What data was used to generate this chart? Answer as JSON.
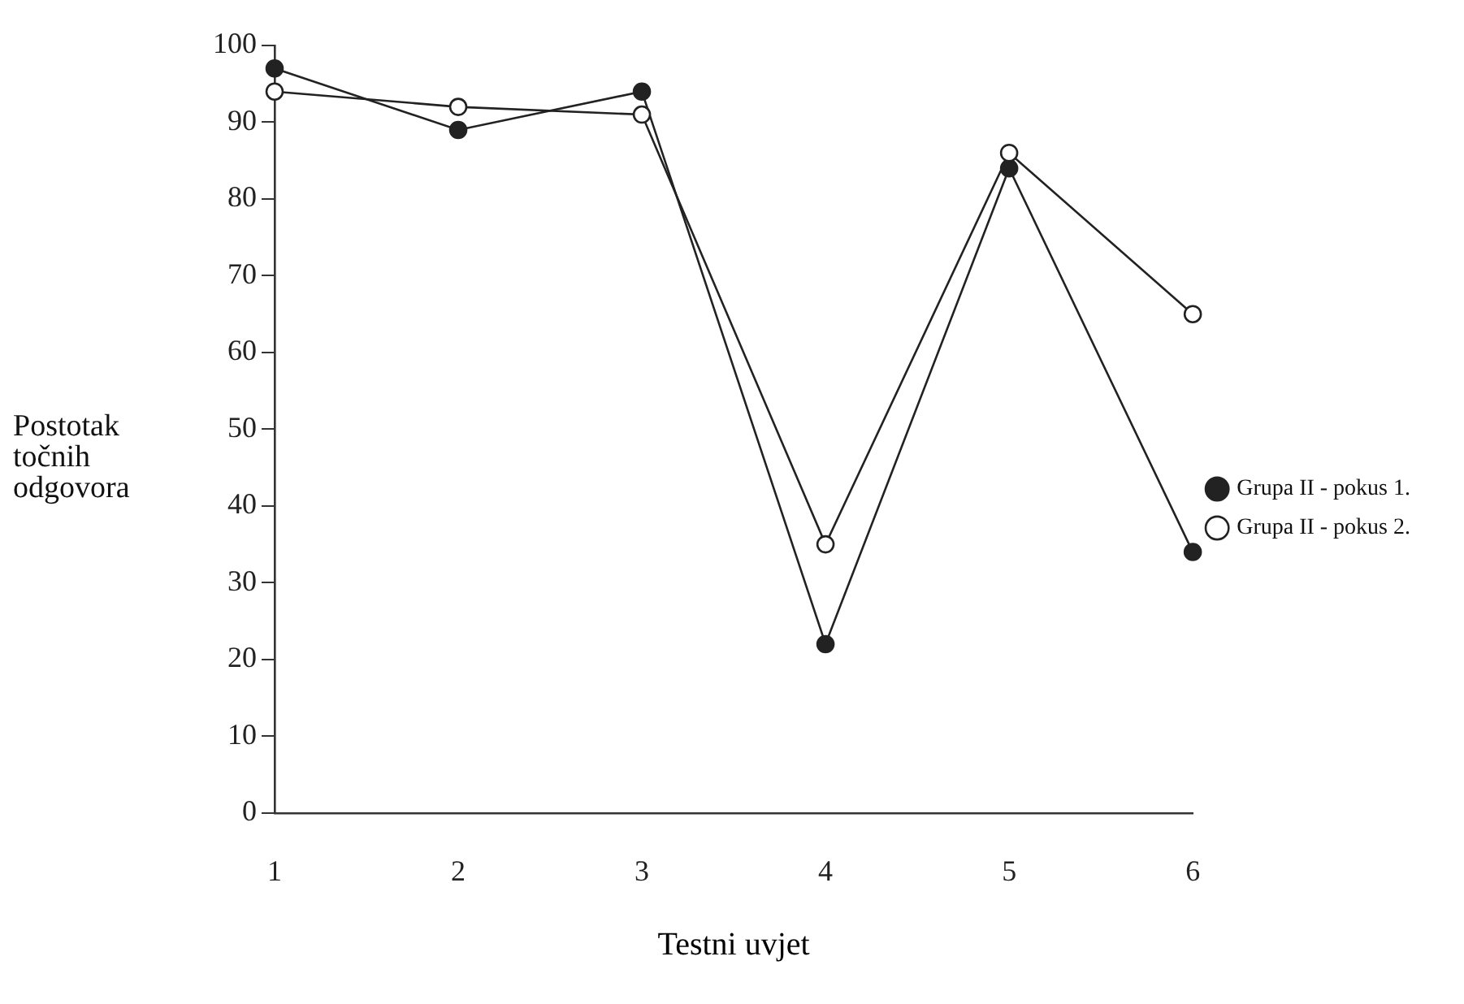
{
  "chart_data": {
    "type": "line",
    "xlabel": "Testni uvjet",
    "ylabel": "Postotak točnih odgovora",
    "categories": [
      "1",
      "2",
      "3",
      "4",
      "5",
      "6"
    ],
    "series": [
      {
        "name": "Grupa II - pokus 1.",
        "color": "#222222",
        "values": [
          97,
          89,
          94,
          22,
          84,
          34
        ]
      },
      {
        "name": "Grupa II - pokus 2.",
        "color": "#222222",
        "values": [
          94,
          92,
          91,
          35,
          86,
          65
        ]
      }
    ],
    "ylim": [
      0,
      100
    ],
    "yticks": [
      0,
      10,
      20,
      30,
      40,
      50,
      60,
      70,
      80,
      90,
      100
    ],
    "grid": false,
    "legend": "right",
    "marker": "circle",
    "line_style": "solid"
  }
}
